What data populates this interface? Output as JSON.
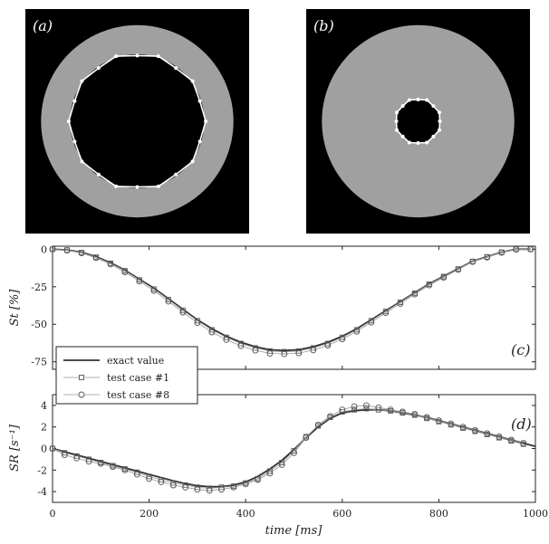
{
  "images": [
    {
      "label": "(a)",
      "ring_outer_fraction": 0.86,
      "ring_inner_fraction": 0.6
    },
    {
      "label": "(b)",
      "ring_outer_fraction": 0.86,
      "ring_inner_fraction": 0.2
    }
  ],
  "colors": {
    "image_bg": "#000000",
    "ring": "#a0a0a0",
    "contour": "#ffffff",
    "line": "#333333",
    "marker": "#555555"
  },
  "chart_data": [
    {
      "type": "line",
      "panel_label": "(c)",
      "ylabel": "St [%]",
      "ylim": [
        -80,
        2
      ],
      "yticks": [
        0,
        -25,
        -50,
        -75
      ],
      "xlim": [
        0,
        1000
      ],
      "series": [
        {
          "name": "exact value",
          "x": [
            0,
            30,
            60,
            90,
            120,
            150,
            180,
            210,
            240,
            270,
            300,
            330,
            360,
            390,
            420,
            450,
            480,
            510,
            540,
            570,
            600,
            630,
            660,
            690,
            720,
            750,
            780,
            810,
            840,
            870,
            900,
            930,
            960,
            990
          ],
          "values": [
            0,
            -0.5,
            -2,
            -5,
            -9,
            -14,
            -20,
            -26,
            -33,
            -40,
            -47,
            -53,
            -58,
            -62,
            -65,
            -67,
            -67.5,
            -67,
            -65,
            -62,
            -58,
            -53,
            -47,
            -41,
            -35,
            -29,
            -23,
            -18,
            -13,
            -8,
            -5,
            -2,
            0,
            0
          ]
        },
        {
          "name": "test case #1",
          "x": [
            0,
            30,
            60,
            90,
            120,
            150,
            180,
            210,
            240,
            270,
            300,
            330,
            360,
            390,
            420,
            450,
            480,
            510,
            540,
            570,
            600,
            630,
            660,
            690,
            720,
            750,
            780,
            810,
            840,
            870,
            900,
            930,
            960,
            990
          ],
          "values": [
            0,
            -0.6,
            -2.2,
            -5.3,
            -9.4,
            -14.4,
            -20.5,
            -26.6,
            -33.6,
            -40.7,
            -47.6,
            -53.7,
            -58.7,
            -62.8,
            -65.8,
            -67.8,
            -68.3,
            -67.8,
            -65.8,
            -62.8,
            -58.7,
            -53.7,
            -47.6,
            -41.5,
            -35.4,
            -29.3,
            -23.3,
            -18.2,
            -13.2,
            -8.1,
            -5.1,
            -2,
            0,
            0
          ]
        },
        {
          "name": "test case #8",
          "x": [
            0,
            30,
            60,
            90,
            120,
            150,
            180,
            210,
            240,
            270,
            300,
            330,
            360,
            390,
            420,
            450,
            480,
            510,
            540,
            570,
            600,
            630,
            660,
            690,
            720,
            750,
            780,
            810,
            840,
            870,
            900,
            930,
            960,
            990
          ],
          "values": [
            0,
            -0.8,
            -2.6,
            -5.8,
            -10,
            -15.2,
            -21.4,
            -27.6,
            -34.7,
            -42,
            -49,
            -55.3,
            -60.3,
            -64.4,
            -67.4,
            -69.4,
            -69.8,
            -69.2,
            -67.2,
            -64,
            -59.9,
            -54.8,
            -48.7,
            -42.4,
            -36.2,
            -30,
            -24,
            -18.8,
            -13.6,
            -8.4,
            -5.4,
            -2.3,
            -0.2,
            0
          ]
        }
      ]
    },
    {
      "type": "line",
      "panel_label": "(d)",
      "ylabel": "SR [s⁻¹]",
      "ylim": [
        -5,
        5
      ],
      "yticks": [
        4,
        2,
        0,
        -2,
        -4
      ],
      "xlim": [
        0,
        1000
      ],
      "xticks": [
        0,
        200,
        400,
        600,
        800,
        1000
      ],
      "xlabel": "time [ms]",
      "series": [
        {
          "name": "exact value",
          "x": [
            0,
            25,
            50,
            75,
            100,
            125,
            150,
            175,
            200,
            225,
            250,
            275,
            300,
            325,
            350,
            375,
            400,
            425,
            450,
            475,
            500,
            525,
            550,
            575,
            600,
            625,
            650,
            675,
            700,
            725,
            750,
            775,
            800,
            825,
            850,
            875,
            900,
            925,
            950,
            975,
            1000
          ],
          "values": [
            0,
            -0.3,
            -0.6,
            -0.9,
            -1.2,
            -1.5,
            -1.8,
            -2.1,
            -2.4,
            -2.7,
            -3.0,
            -3.25,
            -3.45,
            -3.55,
            -3.55,
            -3.4,
            -3.1,
            -2.6,
            -1.9,
            -1.1,
            -0.1,
            1.0,
            2.0,
            2.8,
            3.3,
            3.5,
            3.6,
            3.6,
            3.5,
            3.3,
            3.1,
            2.9,
            2.6,
            2.3,
            2.0,
            1.7,
            1.4,
            1.1,
            0.8,
            0.5,
            0.2
          ]
        },
        {
          "name": "test case #1",
          "x": [
            0,
            25,
            50,
            75,
            100,
            125,
            150,
            175,
            200,
            225,
            250,
            275,
            300,
            325,
            350,
            375,
            400,
            425,
            450,
            475,
            500,
            525,
            550,
            575,
            600,
            625,
            650,
            675,
            700,
            725,
            750,
            775,
            800,
            825,
            850,
            875,
            900,
            925,
            950,
            975
          ],
          "values": [
            0,
            -0.4,
            -0.7,
            -1.0,
            -1.3,
            -1.6,
            -1.9,
            -2.2,
            -2.6,
            -2.9,
            -3.2,
            -3.4,
            -3.6,
            -3.7,
            -3.6,
            -3.5,
            -3.2,
            -2.8,
            -2.1,
            -1.3,
            -0.2,
            1.1,
            2.1,
            2.9,
            3.4,
            3.6,
            3.7,
            3.6,
            3.5,
            3.3,
            3.1,
            2.8,
            2.5,
            2.2,
            1.9,
            1.6,
            1.3,
            1.0,
            0.7,
            0.4
          ]
        },
        {
          "name": "test case #8",
          "x": [
            0,
            25,
            50,
            75,
            100,
            125,
            150,
            175,
            200,
            225,
            250,
            275,
            300,
            325,
            350,
            375,
            400,
            425,
            450,
            475,
            500,
            525,
            550,
            575,
            600,
            625,
            650,
            675,
            700,
            725,
            750,
            775,
            800,
            825,
            850,
            875,
            900,
            925,
            950,
            975
          ],
          "values": [
            0,
            -0.6,
            -0.9,
            -1.2,
            -1.4,
            -1.7,
            -2.0,
            -2.4,
            -2.8,
            -3.1,
            -3.4,
            -3.6,
            -3.8,
            -3.9,
            -3.8,
            -3.6,
            -3.3,
            -2.9,
            -2.3,
            -1.5,
            -0.4,
            1.0,
            2.2,
            3.0,
            3.6,
            3.9,
            4.0,
            3.8,
            3.6,
            3.4,
            3.2,
            2.9,
            2.6,
            2.3,
            2.0,
            1.7,
            1.4,
            1.1,
            0.8,
            0.5
          ]
        }
      ]
    }
  ]
}
